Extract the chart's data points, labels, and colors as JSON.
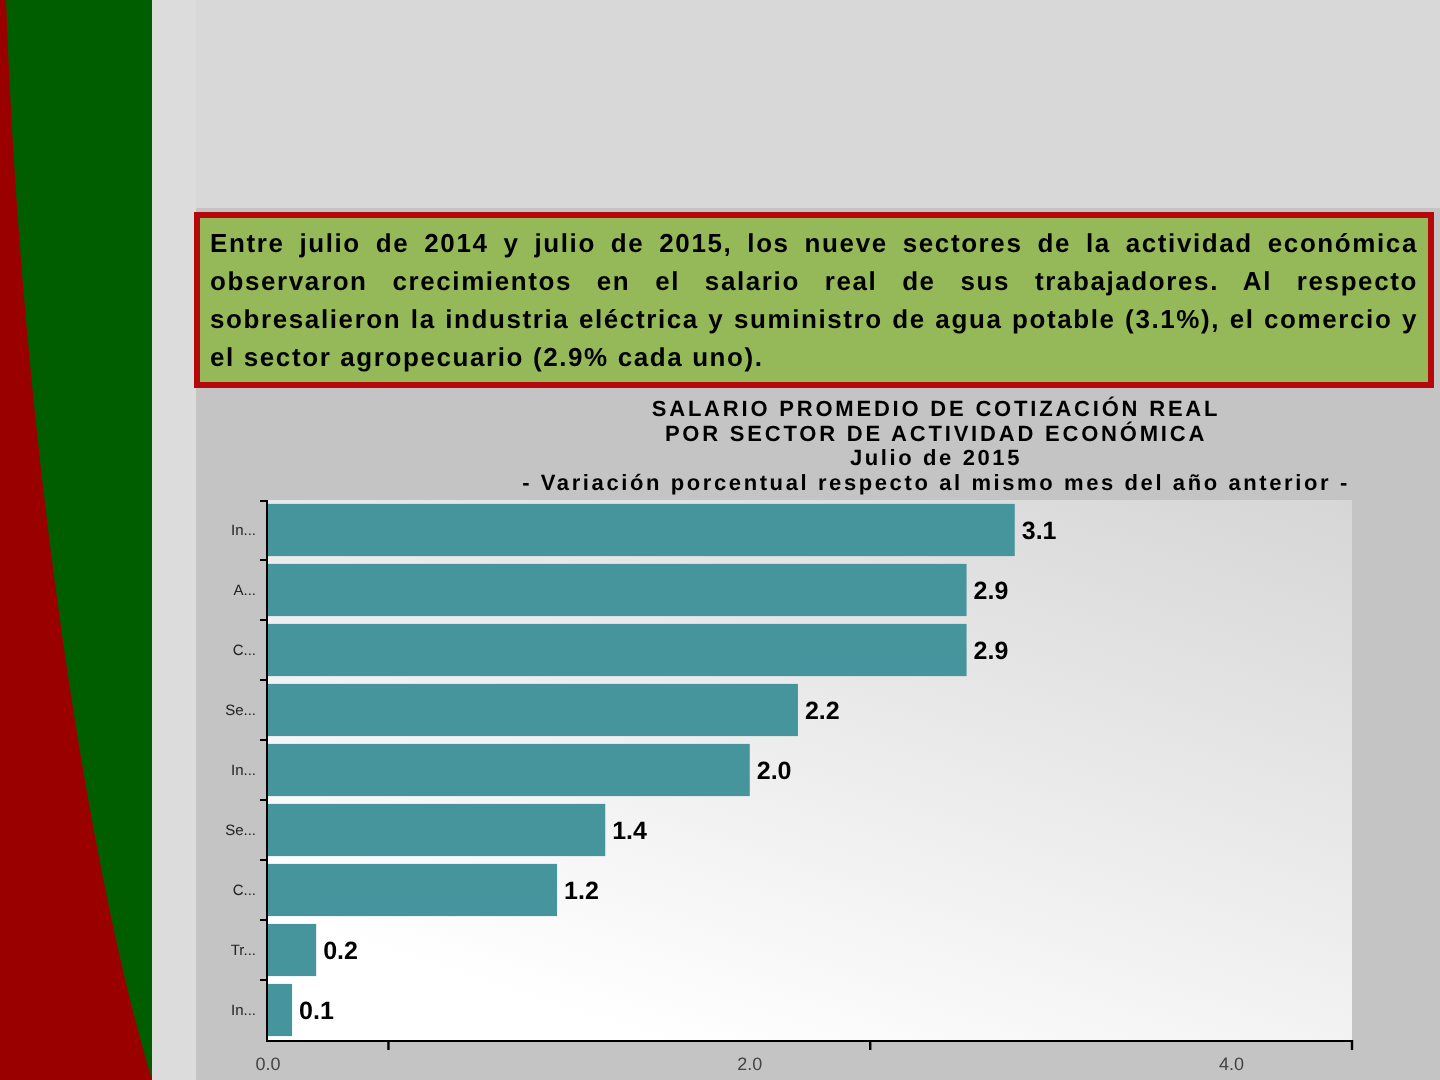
{
  "chart_data": {
    "type": "bar",
    "orientation": "horizontal",
    "title": "SALARIO PROMEDIO DE COTIZACIÓN REAL\nPOR SECTOR DE ACTIVIDAD ECONÓMICA",
    "subtitle": "Julio de 2015\n- Variación porcentual respecto al mismo mes del año anterior -",
    "annotations": [
      "Entre julio de 2014 y julio de 2015, los nueve sectores de la actividad económica observaron crecimientos en el salario real de sus trabajadores. Al respecto sobresalieron la industria eléctrica y suministro de agua potable (3.1%), el comercio y el sector agropecuario (2.9% cada uno)."
    ],
    "categories": [
      "In...",
      "A...",
      "C...",
      "Se...",
      "In...",
      "Se...",
      "C...",
      "Tr...",
      "In..."
    ],
    "values": [
      3.1,
      2.9,
      2.9,
      2.2,
      2.0,
      1.4,
      1.2,
      0.2,
      0.1
    ],
    "value_labels": [
      "3.1",
      "2.9",
      "2.9",
      "2.2",
      "2.0",
      "1.4",
      "1.2",
      "0.2",
      "0.1"
    ],
    "color": "#47959c",
    "xlim": [
      0,
      4.5
    ],
    "xticks": [
      {
        "value": 0,
        "label": "0.0"
      },
      {
        "value": 0.5,
        "label": null
      },
      {
        "value": 2,
        "label": "2.0"
      },
      {
        "value": 2.5,
        "label": null
      },
      {
        "value": 4,
        "label": "4.0"
      },
      {
        "value": 4.5,
        "label": null
      }
    ]
  }
}
